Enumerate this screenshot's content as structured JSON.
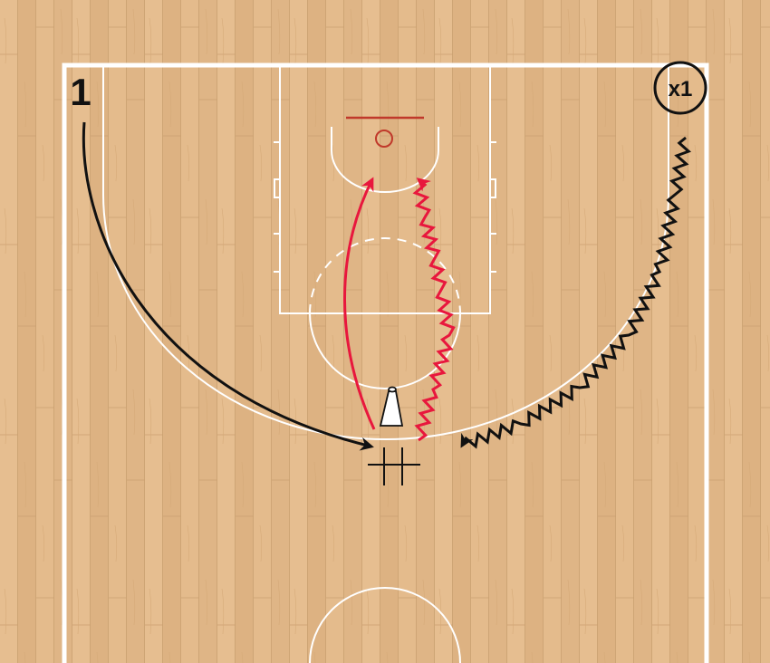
{
  "diagram": {
    "players": {
      "offense": "1",
      "defense": "x1"
    },
    "colors": {
      "floor": "#e2b98a",
      "court_lines": "#ffffff",
      "rim": "#c0392b",
      "offense_path": "#111111",
      "defense_path": "#111111",
      "drive_path": "#e8173d",
      "dribble_path": "#e8173d"
    },
    "icons": {
      "cone": "cone-icon",
      "screen": "screen-marker-icon"
    }
  }
}
